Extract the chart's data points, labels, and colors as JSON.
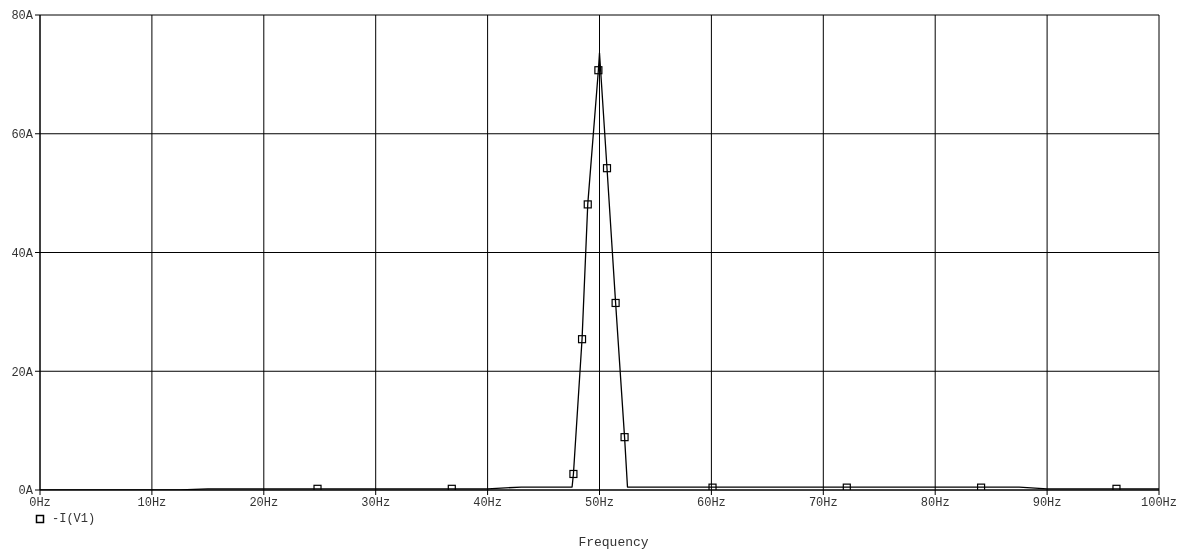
{
  "chart_data": {
    "type": "line",
    "xlabel": "Frequency",
    "xlim": [
      0,
      100
    ],
    "xticks": [
      {
        "value": 0,
        "label": "0Hz"
      },
      {
        "value": 10,
        "label": "10Hz"
      },
      {
        "value": 20,
        "label": "20Hz"
      },
      {
        "value": 30,
        "label": "30Hz"
      },
      {
        "value": 40,
        "label": "40Hz"
      },
      {
        "value": 50,
        "label": "50Hz"
      },
      {
        "value": 60,
        "label": "60Hz"
      },
      {
        "value": 70,
        "label": "70Hz"
      },
      {
        "value": 80,
        "label": "80Hz"
      },
      {
        "value": 90,
        "label": "90Hz"
      },
      {
        "value": 100,
        "label": "100Hz"
      }
    ],
    "ylim": [
      0,
      80
    ],
    "yticks": [
      {
        "value": 0,
        "label": "0A"
      },
      {
        "value": 20,
        "label": "20A"
      },
      {
        "value": 40,
        "label": "40A"
      },
      {
        "value": 60,
        "label": "60A"
      },
      {
        "value": 80,
        "label": "80A"
      }
    ],
    "grid": true,
    "legend": "bottom left",
    "series": [
      {
        "type": "line",
        "color": "#000000",
        "marker": "none",
        "x": [
          0,
          12.5,
          15,
          40,
          43,
          47.55,
          47.67,
          48.44,
          48.95,
          49.9,
          50.0,
          50.67,
          51.44,
          52.24,
          52.5,
          87.5,
          90,
          100
        ],
        "values": [
          0,
          0,
          0.2,
          0.2,
          0.5,
          0.5,
          2.7,
          25.4,
          48.1,
          70.7,
          73.6,
          54.2,
          31.5,
          8.9,
          0.5,
          0.5,
          0.2,
          0.2
        ]
      },
      {
        "type": "scatter",
        "name": "-I(V1)",
        "color": "#000000",
        "marker": "square",
        "x": [
          24.8,
          36.8,
          47.67,
          48.44,
          48.95,
          49.9,
          50.67,
          51.44,
          52.24,
          60.1,
          72.1,
          84.1,
          96.2
        ],
        "values": [
          0.2,
          0.2,
          2.7,
          25.4,
          48.1,
          70.7,
          54.2,
          31.5,
          8.9,
          0.4,
          0.4,
          0.4,
          0.2
        ]
      }
    ]
  }
}
